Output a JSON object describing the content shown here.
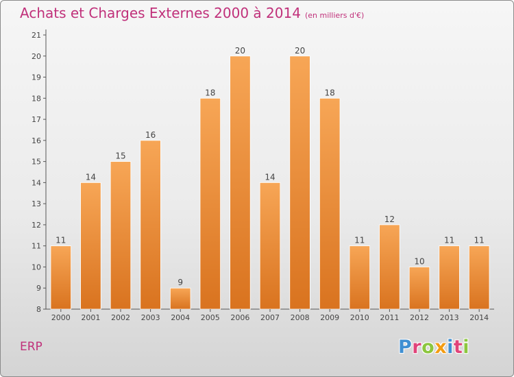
{
  "title": "Achats et Charges Externes 2000 à 2014",
  "subtitle": "(en milliers d'€)",
  "footer_label": "ERP",
  "logo": {
    "text": "Proxiti",
    "letters": [
      {
        "ch": "P",
        "color": "#3f8fd2"
      },
      {
        "ch": "r",
        "color": "#e0447a"
      },
      {
        "ch": "o",
        "color": "#8cc63f"
      },
      {
        "ch": "x",
        "color": "#f39c12"
      },
      {
        "ch": "i",
        "color": "#3f8fd2"
      },
      {
        "ch": "t",
        "color": "#e0447a"
      },
      {
        "ch": "i",
        "color": "#8cc63f"
      }
    ]
  },
  "colors": {
    "bar_top": "#f7a656",
    "bar_bottom": "#d9731f",
    "title": "#c0307a",
    "axis": "#555555"
  },
  "chart_data": {
    "type": "bar",
    "categories": [
      "2000",
      "2001",
      "2002",
      "2003",
      "2004",
      "2005",
      "2006",
      "2007",
      "2008",
      "2009",
      "2010",
      "2011",
      "2012",
      "2013",
      "2014"
    ],
    "values": [
      11,
      14,
      15,
      16,
      9,
      18,
      20,
      14,
      20,
      18,
      11,
      12,
      10,
      11,
      11
    ],
    "ylim": [
      8,
      21
    ],
    "yticks": [
      8,
      9,
      10,
      11,
      12,
      13,
      14,
      15,
      16,
      17,
      18,
      19,
      20,
      21
    ],
    "grid": false,
    "data_labels": true
  }
}
